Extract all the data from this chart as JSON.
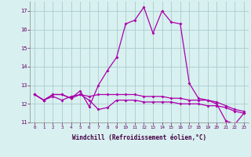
{
  "xlabel": "Windchill (Refroidissement éolien,°C)",
  "ylabel": "",
  "bg_color": "#c8eaea",
  "plot_bg": "#d8f0f0",
  "grid_color": "#aacccc",
  "line_color": "#aa00aa",
  "xlim": [
    -0.5,
    23.5
  ],
  "ylim": [
    11,
    17.5
  ],
  "yticks": [
    11,
    12,
    13,
    14,
    15,
    16,
    17
  ],
  "xticks": [
    0,
    1,
    2,
    3,
    4,
    5,
    6,
    7,
    8,
    9,
    10,
    11,
    12,
    13,
    14,
    15,
    16,
    17,
    18,
    19,
    20,
    21,
    22,
    23
  ],
  "line1": [
    12.5,
    12.2,
    12.5,
    12.5,
    12.3,
    12.7,
    11.85,
    13.0,
    13.8,
    14.5,
    16.3,
    16.5,
    17.2,
    15.8,
    17.0,
    16.4,
    16.3,
    13.1,
    12.3,
    12.2,
    12.0,
    11.1,
    10.9,
    11.5
  ],
  "line2": [
    12.5,
    12.2,
    12.5,
    12.5,
    12.3,
    12.5,
    12.2,
    11.7,
    11.8,
    12.2,
    12.2,
    12.2,
    12.1,
    12.1,
    12.1,
    12.1,
    12.0,
    12.0,
    12.0,
    11.9,
    11.9,
    11.8,
    11.6,
    11.5
  ],
  "line3": [
    12.5,
    12.2,
    12.4,
    12.2,
    12.4,
    12.5,
    12.4,
    12.5,
    12.5,
    12.5,
    12.5,
    12.5,
    12.4,
    12.4,
    12.4,
    12.3,
    12.3,
    12.2,
    12.2,
    12.2,
    12.1,
    11.9,
    11.7,
    11.6
  ]
}
